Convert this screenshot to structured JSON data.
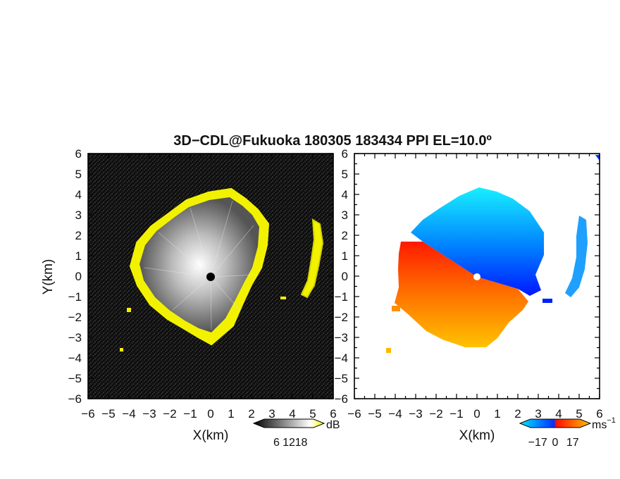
{
  "title": "3D−CDL@Fukuoka 180305 183434 PPI EL=10.0º",
  "chart_data": [
    {
      "type": "heatmap",
      "name": "reflectivity",
      "xlabel": "X(km)",
      "ylabel": "Y(km)",
      "xlim": [
        -6,
        6
      ],
      "ylim": [
        -6,
        6
      ],
      "x_ticks": [
        "−6",
        "−5",
        "−4",
        "−3",
        "−2",
        "−1",
        "0",
        "1",
        "2",
        "3",
        "4",
        "5",
        "6"
      ],
      "y_ticks": [
        "6",
        "5",
        "4",
        "3",
        "2",
        "1",
        "0",
        "−1",
        "−2",
        "−3",
        "−4",
        "−5",
        "−6"
      ],
      "colorbar": {
        "unit": "dB",
        "ticks": [
          "6",
          "12",
          "18"
        ],
        "range": [
          0,
          24
        ],
        "colors": [
          "#000000",
          "#ffffff",
          "#ffff00"
        ]
      },
      "echo_boundary_km": {
        "north": 4.2,
        "south": -3.3,
        "west": -3.8,
        "east": 3.1
      }
    },
    {
      "type": "heatmap",
      "name": "doppler-velocity",
      "xlabel": "X(km)",
      "ylabel": "",
      "xlim": [
        -6,
        6
      ],
      "ylim": [
        -6,
        6
      ],
      "x_ticks": [
        "−6",
        "−5",
        "−4",
        "−3",
        "−2",
        "−1",
        "0",
        "1",
        "2",
        "3",
        "4",
        "5",
        "6"
      ],
      "y_ticks": [
        "6",
        "5",
        "4",
        "3",
        "2",
        "1",
        "0",
        "−1",
        "−2",
        "−3",
        "−4",
        "−5",
        "−6"
      ],
      "colorbar": {
        "unit": "ms",
        "unit_exp": "−1",
        "ticks": [
          "−17",
          "0",
          "17"
        ],
        "range": [
          -24,
          24
        ],
        "colors": [
          "#00e0ff",
          "#0040ff",
          "#ff2000",
          "#ffa000"
        ]
      },
      "echo_boundary_km": {
        "north": 4.3,
        "south": -3.4,
        "west": -4.3,
        "east": 3.2
      }
    }
  ]
}
